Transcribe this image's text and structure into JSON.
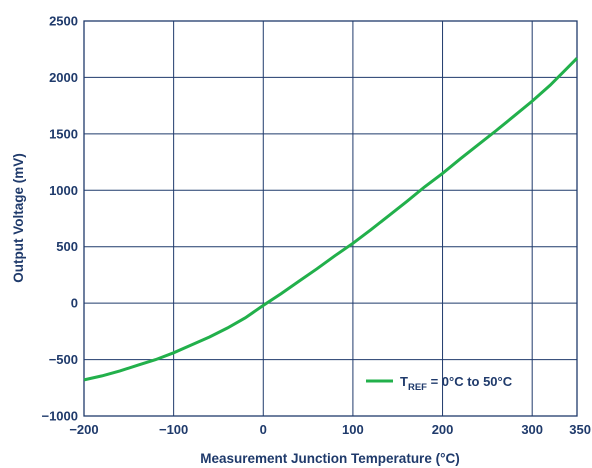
{
  "chart_data": {
    "type": "line",
    "xlabel": "Measurement Junction Temperature (°C)",
    "ylabel": "Output Voltage (mV)",
    "xlim": [
      -200,
      350
    ],
    "ylim": [
      -1000,
      2500
    ],
    "x_ticks": [
      -200,
      -100,
      0,
      100,
      200,
      300,
      350
    ],
    "y_ticks": [
      2500,
      2000,
      1500,
      1000,
      500,
      0,
      -500,
      -1000
    ],
    "x_tick_labels": [
      "−200",
      "−100",
      "0",
      "100",
      "200",
      "300",
      "350"
    ],
    "y_tick_labels": [
      "2500",
      "2000",
      "1500",
      "1000",
      "500",
      "0",
      "−500",
      "−1000"
    ],
    "grid": true,
    "legend": {
      "placement": "bottom-right",
      "prefix": "T",
      "subscript": "REF",
      "suffix": " = 0°C to 50°C"
    },
    "series": [
      {
        "name": "TREF = 0°C to 50°C",
        "color": "#22b04b",
        "x": [
          -200,
          -180,
          -160,
          -140,
          -120,
          -100,
          -80,
          -60,
          -40,
          -20,
          0,
          20,
          40,
          60,
          80,
          100,
          120,
          140,
          160,
          180,
          200,
          220,
          240,
          260,
          280,
          300,
          320,
          340,
          350
        ],
        "y": [
          -680,
          -645,
          -600,
          -550,
          -500,
          -440,
          -370,
          -300,
          -220,
          -130,
          -20,
          85,
          195,
          305,
          420,
          530,
          650,
          775,
          900,
          1030,
          1150,
          1280,
          1405,
          1530,
          1660,
          1790,
          1930,
          2090,
          2170
        ]
      }
    ]
  },
  "colors": {
    "axis_text": "#1f3a6b",
    "grid": "#1f3a6b",
    "line": "#22b04b"
  }
}
